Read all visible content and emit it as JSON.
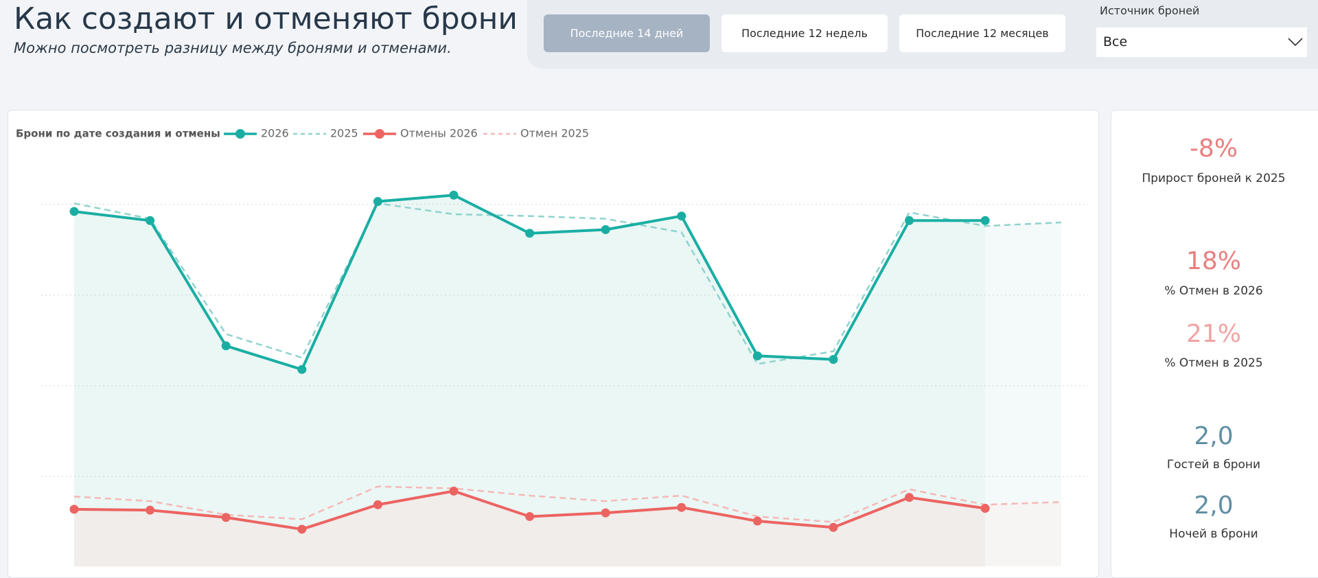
{
  "header": {
    "title": "Как создают и отменяют брони",
    "subtitle": "Можно посмотреть разницу между бронями и отменами."
  },
  "filters": {
    "buttons": [
      {
        "label": "Последние 14 дней",
        "active": true
      },
      {
        "label": "Последние 12 недель",
        "active": false
      },
      {
        "label": "Последние 12 месяцев",
        "active": false
      }
    ],
    "source_label": "Источник броней",
    "source_value": "Все"
  },
  "chart_data": {
    "type": "line",
    "title": "Брони по дате создания и отмены",
    "categories": [
      null,
      null,
      null,
      null,
      null,
      null,
      null,
      null,
      null,
      null,
      null,
      null,
      null,
      null
    ],
    "ylim": [
      0,
      440
    ],
    "yticks": [
      100,
      200,
      300,
      400
    ],
    "grid": true,
    "series": [
      {
        "name": "2026",
        "color": "#1aaea3",
        "style": "solid",
        "markers": true,
        "area": "#eaf7f5",
        "values": [
          392,
          382,
          244,
          218,
          403,
          410,
          368,
          372,
          387,
          233,
          229,
          382,
          382,
          null
        ]
      },
      {
        "name": "2025",
        "color": "#8fd3cd",
        "style": "dashed",
        "markers": false,
        "values": [
          401,
          384,
          257,
          231,
          401,
          389,
          387,
          384,
          369,
          224,
          238,
          391,
          376,
          380
        ]
      },
      {
        "name": "Отмены 2026",
        "color": "#ec6461",
        "style": "solid",
        "markers": true,
        "area": "#f0edeb",
        "values": [
          64,
          63,
          55,
          42,
          69,
          84,
          56,
          60,
          66,
          51,
          44,
          77,
          65,
          null
        ]
      },
      {
        "name": "Отмен 2025",
        "color": "#f6b8b6",
        "style": "dashed",
        "markers": false,
        "values": [
          78,
          73,
          58,
          53,
          89,
          87,
          79,
          73,
          79,
          56,
          50,
          86,
          69,
          72
        ]
      }
    ]
  },
  "kpis": [
    {
      "value": "-8%",
      "label": "Прирост броней к 2025",
      "color": "#e97f7f"
    },
    {
      "value": "18%",
      "label": "% Отмен в 2026",
      "color": "#e97f7f"
    },
    {
      "value": "21%",
      "label": "% Отмен в 2025",
      "color": "#f0a4a3"
    },
    {
      "value": "2,0",
      "label": "Гостей в брони",
      "color": "#5f8ea3"
    },
    {
      "value": "2,0",
      "label": "Ночей в брони",
      "color": "#5f8ea3"
    }
  ]
}
